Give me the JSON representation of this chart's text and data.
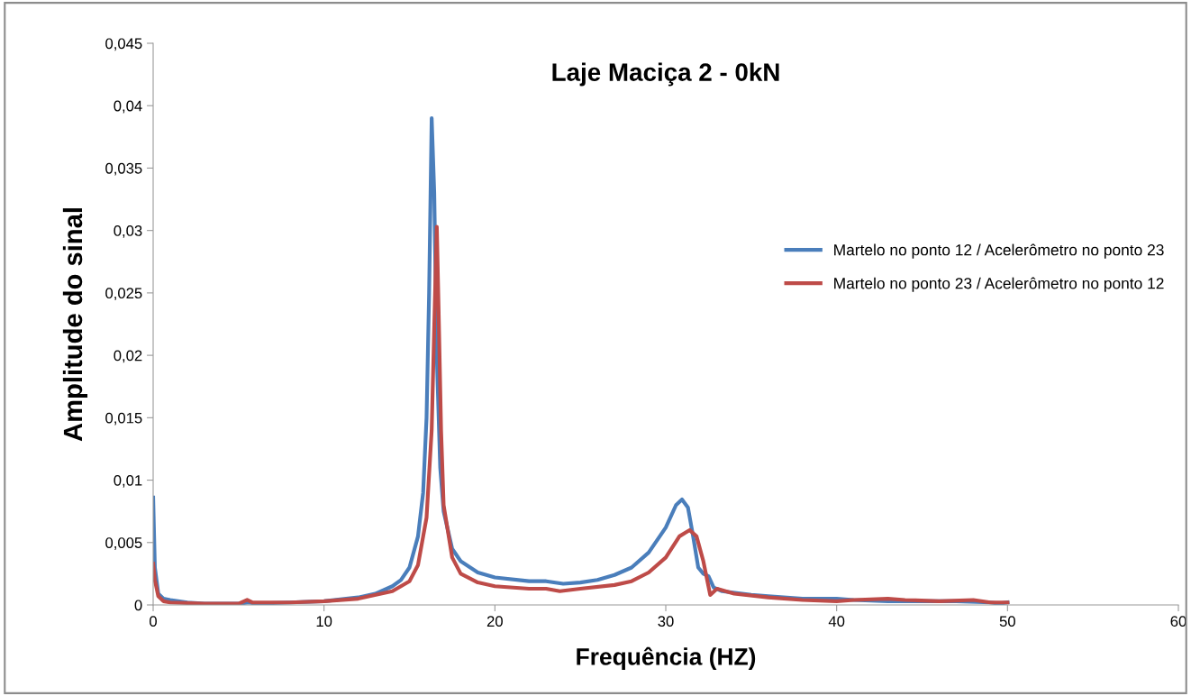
{
  "chart_data": {
    "type": "line",
    "title": "Laje Maciça 2 - 0kN",
    "xlabel": "Frequência (HZ)",
    "ylabel": "Amplitude do sinal",
    "xlim": [
      0,
      60
    ],
    "xticks": [
      0,
      10,
      20,
      30,
      40,
      50,
      60
    ],
    "ylim": [
      0,
      0.045
    ],
    "yticks": [
      {
        "value": 0,
        "label": "0"
      },
      {
        "value": 0.005,
        "label": "0,005"
      },
      {
        "value": 0.01,
        "label": "0,01"
      },
      {
        "value": 0.015,
        "label": "0,015"
      },
      {
        "value": 0.02,
        "label": "0,02"
      },
      {
        "value": 0.025,
        "label": "0,025"
      },
      {
        "value": 0.03,
        "label": "0,03"
      },
      {
        "value": 0.035,
        "label": "0,035"
      },
      {
        "value": 0.04,
        "label": "0,04"
      },
      {
        "value": 0.045,
        "label": "0,045"
      }
    ],
    "grid": false,
    "legend": "right",
    "marker": "none",
    "line_style": "solid",
    "series": [
      {
        "name": "Martelo no ponto 12 / Acelerômetro no ponto 23",
        "color": "#4a7ebb",
        "x": [
          0,
          0.1,
          0.3,
          0.6,
          1,
          2,
          3,
          5,
          5.6,
          6,
          8,
          10,
          12,
          13,
          14,
          14.5,
          15,
          15.5,
          15.8,
          16,
          16.15,
          16.3,
          16.45,
          16.6,
          16.8,
          17,
          17.5,
          18,
          19,
          20,
          22,
          23,
          24,
          25,
          26,
          27,
          28,
          29,
          30,
          30.6,
          30.95,
          31.3,
          31.6,
          31.9,
          32.2,
          32.5,
          32.8,
          33.3,
          35,
          36,
          38,
          40,
          41,
          43,
          45,
          47,
          49,
          49.5,
          50
        ],
        "values": [
          0.0086,
          0.003,
          0.0009,
          0.0005,
          0.0004,
          0.0002,
          0.0001,
          0.0001,
          0.0002,
          0.0001,
          0.0002,
          0.0003,
          0.0006,
          0.0009,
          0.0015,
          0.002,
          0.003,
          0.0055,
          0.009,
          0.015,
          0.025,
          0.039,
          0.033,
          0.02,
          0.011,
          0.0075,
          0.0045,
          0.0035,
          0.0026,
          0.0022,
          0.0019,
          0.0019,
          0.0017,
          0.0018,
          0.002,
          0.0024,
          0.003,
          0.0042,
          0.0062,
          0.008,
          0.00845,
          0.0078,
          0.0055,
          0.003,
          0.0025,
          0.0023,
          0.0014,
          0.0011,
          0.0008,
          0.0007,
          0.0005,
          0.0005,
          0.0004,
          0.0003,
          0.0003,
          0.0003,
          0.0002,
          0.0001,
          0.0002
        ]
      },
      {
        "name": "Martelo no ponto 23 / Acelerômetro no ponto 12",
        "color": "#be4b48",
        "x": [
          0,
          0.1,
          0.3,
          0.6,
          1,
          3,
          5,
          5.5,
          5.8,
          8,
          10,
          12,
          14,
          15,
          15.5,
          16,
          16.3,
          16.5,
          16.6,
          16.7,
          16.85,
          17,
          17.5,
          18,
          19,
          20,
          22,
          23,
          23.8,
          25,
          27,
          28,
          29,
          30,
          30.8,
          31.4,
          31.8,
          32.2,
          32.6,
          33,
          34,
          36,
          38,
          40,
          41,
          43,
          44,
          46,
          48,
          49,
          50
        ],
        "values": [
          0.0033,
          0.002,
          0.0007,
          0.0003,
          0.0002,
          0.0001,
          0.0001,
          0.0004,
          0.0002,
          0.0002,
          0.0003,
          0.0005,
          0.0011,
          0.0019,
          0.0032,
          0.007,
          0.014,
          0.025,
          0.0303,
          0.024,
          0.014,
          0.008,
          0.0038,
          0.0025,
          0.0018,
          0.0015,
          0.0013,
          0.0013,
          0.0011,
          0.0013,
          0.0016,
          0.0019,
          0.0026,
          0.0038,
          0.0055,
          0.006,
          0.0055,
          0.0035,
          0.0008,
          0.0013,
          0.0009,
          0.0006,
          0.0004,
          0.0003,
          0.0004,
          0.0005,
          0.0004,
          0.0003,
          0.0004,
          0.0002,
          0.0002
        ]
      }
    ]
  }
}
